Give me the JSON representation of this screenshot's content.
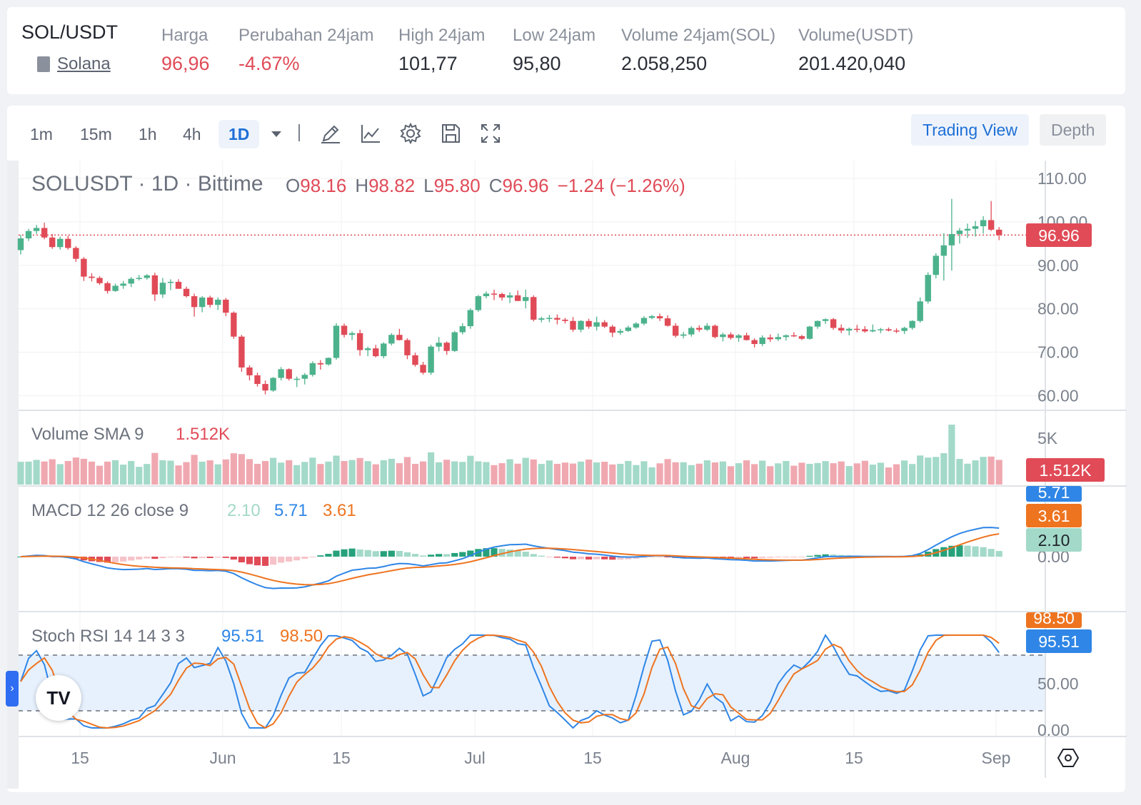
{
  "ticker": {
    "pair": "SOL/USDT",
    "coin": "Solana",
    "stats": [
      {
        "label": "Harga",
        "value": "96,96",
        "negative": true
      },
      {
        "label": "Perubahan 24jam",
        "value": "-4.67%",
        "negative": true
      },
      {
        "label": "High 24jam",
        "value": "101,77",
        "negative": false
      },
      {
        "label": "Low 24jam",
        "value": "95,80",
        "negative": false
      },
      {
        "label": "Volume 24jam(SOL)",
        "value": "2.058,250",
        "negative": false
      },
      {
        "label": "Volume(USDT)",
        "value": "201.420,040",
        "negative": false
      }
    ]
  },
  "toolbar": {
    "timeframes": [
      "1m",
      "15m",
      "1h",
      "4h",
      "1D"
    ],
    "active_timeframe": "1D",
    "icons": [
      "chevron-down-icon",
      "pencil-icon",
      "line-chart-icon",
      "gear-icon",
      "save-icon",
      "fullscreen-icon"
    ],
    "view_tabs": [
      "Trading View",
      "Depth"
    ],
    "active_view": "Trading View"
  },
  "colors": {
    "up": "#4cb28c",
    "down": "#e04b57",
    "volume_up": "#a3d9c8",
    "volume_down": "#f0a8b0",
    "macd_line": "#2f86e6",
    "signal_line": "#ee7420",
    "stoch_k": "#2f86e6",
    "stoch_d": "#ee7420",
    "band": "#e7f1fd"
  },
  "chart_legend": {
    "title": "SOLUSDT · 1D · Bittime",
    "o_label": "O",
    "o_value": "98.16",
    "h_label": "H",
    "h_value": "98.82",
    "l_label": "L",
    "l_value": "95.80",
    "c_label": "C",
    "c_value": "96.96",
    "change": "−1.24 (−1.26%)"
  },
  "indicator_labels": {
    "volume": "Volume SMA 9",
    "volume_value": "1.512K",
    "macd": "MACD 12 26 close 9",
    "macd_hist": "2.10",
    "macd_line": "5.71",
    "macd_signal": "3.61",
    "stoch": "Stoch RSI 14 14 3 3",
    "stoch_k": "95.51",
    "stoch_d": "98.50"
  },
  "axis_labels": {
    "price_ticks": [
      "110.00",
      "100.00",
      "90.00",
      "80.00",
      "70.00",
      "60.00"
    ],
    "price_tag": "96.96",
    "volume_tick": "5K",
    "volume_tag": "1.512K",
    "macd_tags": [
      "5.71",
      "3.61",
      "2.10"
    ],
    "macd_tick": "0.00",
    "stoch_tags": [
      "98.50",
      "95.51"
    ],
    "stoch_ticks": [
      "50.00",
      "0.00"
    ],
    "time_ticks": [
      "15",
      "Jun",
      "15",
      "Jul",
      "15",
      "Aug",
      "15",
      "Sep"
    ]
  },
  "logo": "TV",
  "chart_data": {
    "type": "candlestick",
    "price_axis": {
      "min": 55,
      "max": 115,
      "ticks": [
        110,
        100,
        90,
        80,
        70,
        60
      ]
    },
    "last_price": 96.96,
    "time_axis": {
      "start": "2023-05-07",
      "end": "2023-09-03",
      "labels": [
        "15",
        "Jun",
        "15",
        "Jul",
        "15",
        "Aug",
        "15",
        "Sep"
      ]
    },
    "ohlc": [
      [
        93.5,
        97.0,
        92.5,
        96.2
      ],
      [
        96.2,
        98.4,
        95.6,
        97.9
      ],
      [
        97.9,
        99.3,
        97.2,
        98.6
      ],
      [
        98.6,
        99.8,
        96.0,
        96.4
      ],
      [
        96.4,
        97.2,
        93.8,
        94.2
      ],
      [
        94.2,
        96.6,
        93.6,
        96.1
      ],
      [
        96.1,
        96.8,
        93.6,
        94.0
      ],
      [
        94.0,
        94.4,
        90.8,
        91.5
      ],
      [
        91.5,
        91.9,
        86.4,
        87.4
      ],
      [
        87.4,
        88.2,
        86.3,
        87.1
      ],
      [
        87.1,
        87.5,
        85.5,
        85.9
      ],
      [
        85.9,
        86.3,
        83.5,
        84.1
      ],
      [
        84.1,
        85.8,
        83.9,
        85.3
      ],
      [
        85.3,
        86.4,
        84.6,
        85.8
      ],
      [
        85.8,
        87.3,
        85.0,
        86.9
      ],
      [
        86.9,
        87.8,
        86.5,
        87.1
      ],
      [
        87.1,
        88.0,
        86.7,
        87.7
      ],
      [
        87.7,
        88.3,
        81.8,
        83.3
      ],
      [
        83.3,
        87.1,
        82.5,
        86.0
      ],
      [
        86.0,
        86.8,
        84.3,
        86.2
      ],
      [
        86.2,
        86.8,
        84.6,
        84.6
      ],
      [
        84.6,
        85.1,
        82.6,
        82.9
      ],
      [
        82.9,
        83.5,
        78.2,
        80.4
      ],
      [
        80.4,
        82.9,
        79.2,
        82.6
      ],
      [
        82.6,
        83.0,
        80.3,
        80.9
      ],
      [
        80.9,
        82.6,
        79.7,
        82.1
      ],
      [
        82.1,
        82.5,
        78.3,
        79.1
      ],
      [
        79.1,
        79.4,
        73.1,
        73.6
      ],
      [
        73.6,
        74.0,
        65.5,
        66.5
      ],
      [
        66.5,
        67.0,
        63.5,
        64.7
      ],
      [
        64.7,
        65.3,
        62.1,
        62.7
      ],
      [
        62.7,
        63.5,
        60.3,
        61.2
      ],
      [
        61.2,
        64.3,
        60.9,
        64.1
      ],
      [
        64.1,
        66.6,
        63.5,
        66.1
      ],
      [
        66.1,
        66.3,
        63.5,
        63.9
      ],
      [
        63.9,
        64.4,
        62.0,
        63.9
      ],
      [
        63.9,
        65.2,
        62.6,
        64.8
      ],
      [
        64.8,
        67.9,
        64.4,
        67.5
      ],
      [
        67.5,
        68.2,
        66.0,
        67.2
      ],
      [
        67.2,
        68.8,
        66.9,
        68.7
      ],
      [
        68.7,
        76.7,
        68.3,
        76.1
      ],
      [
        76.1,
        76.6,
        73.4,
        74.0
      ],
      [
        74.0,
        74.8,
        72.8,
        74.4
      ],
      [
        74.4,
        75.2,
        69.2,
        70.5
      ],
      [
        70.5,
        71.3,
        69.1,
        70.9
      ],
      [
        70.9,
        71.7,
        68.8,
        69.1
      ],
      [
        69.1,
        72.3,
        68.6,
        72.0
      ],
      [
        72.0,
        74.4,
        71.6,
        74.0
      ],
      [
        74.0,
        75.4,
        72.7,
        72.8
      ],
      [
        72.8,
        73.2,
        68.4,
        69.3
      ],
      [
        69.3,
        69.9,
        66.7,
        67.1
      ],
      [
        67.1,
        67.8,
        64.9,
        65.3
      ],
      [
        65.3,
        71.7,
        64.8,
        71.3
      ],
      [
        71.3,
        73.5,
        70.2,
        72.2
      ],
      [
        72.2,
        72.5,
        69.4,
        70.3
      ],
      [
        70.3,
        74.9,
        70.1,
        74.6
      ],
      [
        74.6,
        76.7,
        74.1,
        76.0
      ],
      [
        76.0,
        80.1,
        75.4,
        79.7
      ],
      [
        79.7,
        83.2,
        79.3,
        82.9
      ],
      [
        82.9,
        84.0,
        82.4,
        83.5
      ],
      [
        83.5,
        84.4,
        82.0,
        83.4
      ],
      [
        83.4,
        83.7,
        81.9,
        82.6
      ],
      [
        82.6,
        83.8,
        81.3,
        83.1
      ],
      [
        83.1,
        84.2,
        81.8,
        81.8
      ],
      [
        81.8,
        84.4,
        80.1,
        82.7
      ],
      [
        82.7,
        83.1,
        77.1,
        77.5
      ],
      [
        77.5,
        78.2,
        76.9,
        77.8
      ],
      [
        77.8,
        78.6,
        76.9,
        77.9
      ],
      [
        77.9,
        78.7,
        76.4,
        77.5
      ],
      [
        77.5,
        77.9,
        76.6,
        77.2
      ],
      [
        77.2,
        78.1,
        74.7,
        75.2
      ],
      [
        75.2,
        77.4,
        74.6,
        77.2
      ],
      [
        77.2,
        77.7,
        75.4,
        75.9
      ],
      [
        75.9,
        78.2,
        75.0,
        76.9
      ],
      [
        76.9,
        77.4,
        75.6,
        75.9
      ],
      [
        75.9,
        76.3,
        73.5,
        74.5
      ],
      [
        74.5,
        75.4,
        74.0,
        74.9
      ],
      [
        74.9,
        76.1,
        74.7,
        75.7
      ],
      [
        75.7,
        76.9,
        75.4,
        76.6
      ],
      [
        76.6,
        78.3,
        76.2,
        77.9
      ],
      [
        77.9,
        78.6,
        77.6,
        78.3
      ],
      [
        78.3,
        78.9,
        77.2,
        77.8
      ],
      [
        77.8,
        78.5,
        75.9,
        76.1
      ],
      [
        76.1,
        76.7,
        73.4,
        73.8
      ],
      [
        73.8,
        74.7,
        73.2,
        74.1
      ],
      [
        74.1,
        76.0,
        73.6,
        75.6
      ],
      [
        75.6,
        76.2,
        74.7,
        75.2
      ],
      [
        75.2,
        76.7,
        74.9,
        76.1
      ],
      [
        76.1,
        76.4,
        73.2,
        73.5
      ],
      [
        73.5,
        74.5,
        72.5,
        74.1
      ],
      [
        74.1,
        74.6,
        72.9,
        73.3
      ],
      [
        73.3,
        74.2,
        72.4,
        73.9
      ],
      [
        73.9,
        74.5,
        72.7,
        72.8
      ],
      [
        72.8,
        73.2,
        71.1,
        71.9
      ],
      [
        71.9,
        73.9,
        71.4,
        73.4
      ],
      [
        73.4,
        74.1,
        72.4,
        73.0
      ],
      [
        73.0,
        74.3,
        72.6,
        73.5
      ],
      [
        73.5,
        74.1,
        72.7,
        73.9
      ],
      [
        73.9,
        74.6,
        73.5,
        73.7
      ],
      [
        73.7,
        74.0,
        72.8,
        73.1
      ],
      [
        73.1,
        76.1,
        72.9,
        75.9
      ],
      [
        75.9,
        77.3,
        75.4,
        77.2
      ],
      [
        77.2,
        77.8,
        76.5,
        77.6
      ],
      [
        77.6,
        77.9,
        75.2,
        75.6
      ],
      [
        75.6,
        76.4,
        74.4,
        75.0
      ],
      [
        75.0,
        75.7,
        73.9,
        75.4
      ],
      [
        75.4,
        76.3,
        74.6,
        75.3
      ],
      [
        75.3,
        76.0,
        74.5,
        74.8
      ],
      [
        74.8,
        76.4,
        74.6,
        75.1
      ],
      [
        75.1,
        75.6,
        74.4,
        75.3
      ],
      [
        75.3,
        75.7,
        74.8,
        75.0
      ],
      [
        75.0,
        75.5,
        74.4,
        74.9
      ],
      [
        74.9,
        75.9,
        74.2,
        75.6
      ],
      [
        75.6,
        77.4,
        75.2,
        77.2
      ],
      [
        77.2,
        82.6,
        76.8,
        81.7
      ],
      [
        81.7,
        88.4,
        81.2,
        87.8
      ],
      [
        87.8,
        92.8,
        87.0,
        92.2
      ],
      [
        92.2,
        97.4,
        86.5,
        94.6
      ],
      [
        94.6,
        105.3,
        88.8,
        97.2
      ],
      [
        97.2,
        98.6,
        95.0,
        98.0
      ],
      [
        98.0,
        99.6,
        96.3,
        98.4
      ],
      [
        98.4,
        100.2,
        96.6,
        99.0
      ],
      [
        99.0,
        101.3,
        97.3,
        100.4
      ],
      [
        100.4,
        104.8,
        97.9,
        98.2
      ],
      [
        98.2,
        98.8,
        95.8,
        96.96
      ]
    ],
    "volume": {
      "max_tick": "5K",
      "last_value": "1.512K"
    },
    "macd": {
      "params": "12 26 close 9",
      "histogram": 2.1,
      "macd": 5.71,
      "signal": 3.61
    },
    "stoch_rsi": {
      "params": "14 14 3 3",
      "k": 95.51,
      "d": 98.5,
      "upper_band": 80,
      "lower_band": 20
    }
  }
}
